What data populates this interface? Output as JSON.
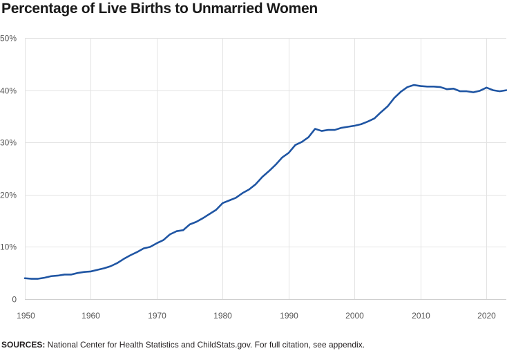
{
  "chart_data": {
    "type": "line",
    "title": "Percentage of Live Births to Unmarried Women",
    "xlabel": "",
    "ylabel": "",
    "xlim": [
      1950,
      2023
    ],
    "ylim": [
      0,
      50
    ],
    "x_ticks": [
      1950,
      1960,
      1970,
      1980,
      1990,
      2000,
      2010,
      2020
    ],
    "x_tick_labels": [
      "1950",
      "1960",
      "1970",
      "1980",
      "1990",
      "2000",
      "2010",
      "2020"
    ],
    "y_ticks": [
      0,
      10,
      20,
      30,
      40,
      50
    ],
    "y_tick_labels": [
      "0",
      "10%",
      "20%",
      "30%",
      "40%",
      "50%"
    ],
    "grid": true,
    "legend": "none",
    "line_color": "#1f55a3",
    "series": [
      {
        "x": [
          1950,
          1951,
          1952,
          1953,
          1954,
          1955,
          1956,
          1957,
          1958,
          1959,
          1960,
          1961,
          1962,
          1963,
          1964,
          1965,
          1966,
          1967,
          1968,
          1969,
          1970,
          1971,
          1972,
          1973,
          1974,
          1975,
          1976,
          1977,
          1978,
          1979,
          1980,
          1981,
          1982,
          1983,
          1984,
          1985,
          1986,
          1987,
          1988,
          1989,
          1990,
          1991,
          1992,
          1993,
          1994,
          1995,
          1996,
          1997,
          1998,
          1999,
          2000,
          2001,
          2002,
          2003,
          2004,
          2005,
          2006,
          2007,
          2008,
          2009,
          2010,
          2011,
          2012,
          2013,
          2014,
          2015,
          2016,
          2017,
          2018,
          2019,
          2020,
          2021,
          2022,
          2023
        ],
        "values": [
          4.0,
          3.9,
          3.9,
          4.1,
          4.4,
          4.5,
          4.7,
          4.7,
          5.0,
          5.2,
          5.3,
          5.6,
          5.9,
          6.3,
          6.9,
          7.7,
          8.4,
          9.0,
          9.7,
          10.0,
          10.7,
          11.3,
          12.4,
          13.0,
          13.2,
          14.3,
          14.8,
          15.5,
          16.3,
          17.1,
          18.4,
          18.9,
          19.4,
          20.3,
          21.0,
          22.0,
          23.4,
          24.5,
          25.7,
          27.1,
          28.0,
          29.5,
          30.1,
          31.0,
          32.6,
          32.2,
          32.4,
          32.4,
          32.8,
          33.0,
          33.2,
          33.5,
          34.0,
          34.6,
          35.8,
          36.9,
          38.5,
          39.7,
          40.6,
          41.0,
          40.8,
          40.7,
          40.7,
          40.6,
          40.2,
          40.3,
          39.8,
          39.8,
          39.6,
          39.9,
          40.5,
          40.0,
          39.8,
          40.0
        ]
      }
    ]
  },
  "source": {
    "label": "SOURCES:",
    "text": " National Center for Health Statistics and ChildStats.gov. For full citation, see appendix."
  }
}
